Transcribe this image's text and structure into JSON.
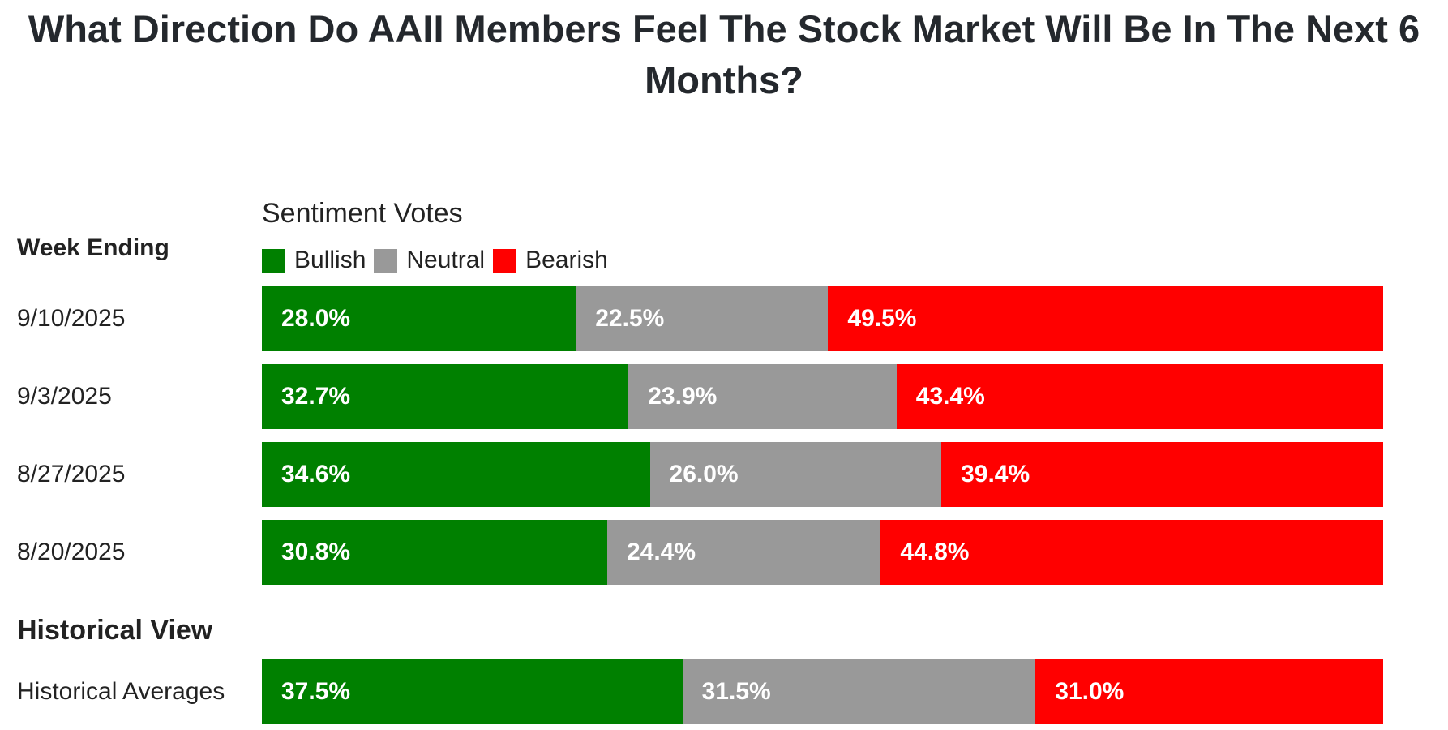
{
  "title": "What Direction Do AAII Members Feel The Stock Market Will Be In The Next 6 Months?",
  "legend_title": "Sentiment Votes",
  "section_week": "Week Ending",
  "section_hist": "Historical View",
  "colors": {
    "Bullish": "#008000",
    "Neutral": "#999999",
    "Bearish": "#ff0000"
  },
  "chart_data": {
    "type": "bar",
    "stacked": true,
    "orientation": "horizontal",
    "normalized_percent": true,
    "title": "What Direction Do AAII Members Feel The Stock Market Will Be In The Next 6 Months?",
    "legend_title": "Sentiment Votes",
    "legend_placement": "top-left",
    "grid": false,
    "categories": [
      "9/10/2025",
      "9/3/2025",
      "8/27/2025",
      "8/20/2025",
      "Historical Averages"
    ],
    "series": [
      {
        "name": "Bullish",
        "values": [
          28.0,
          32.7,
          34.6,
          30.8,
          37.5
        ],
        "labels": [
          "28.0%",
          "32.7%",
          "34.6%",
          "30.8%",
          "37.5%"
        ]
      },
      {
        "name": "Neutral",
        "values": [
          22.5,
          23.9,
          26.0,
          24.4,
          31.5
        ],
        "labels": [
          "22.5%",
          "23.9%",
          "26.0%",
          "24.4%",
          "31.5%"
        ]
      },
      {
        "name": "Bearish",
        "values": [
          49.5,
          43.4,
          39.4,
          44.8,
          31.0
        ],
        "labels": [
          "49.5%",
          "43.4%",
          "39.4%",
          "44.8%",
          "31.0%"
        ]
      }
    ]
  }
}
